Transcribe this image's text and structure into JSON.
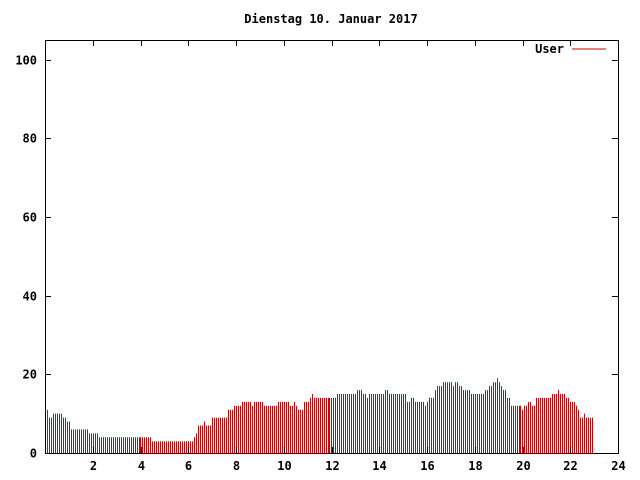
{
  "chart_data": {
    "type": "bar",
    "title": "Dienstag 10. Januar 2017",
    "xlabel": "",
    "ylabel": "",
    "xlim": [
      0,
      24
    ],
    "ylim": [
      0,
      105
    ],
    "x_ticks": [
      2,
      4,
      6,
      8,
      10,
      12,
      14,
      16,
      18,
      20,
      22,
      24
    ],
    "y_ticks": [
      0,
      20,
      40,
      60,
      80,
      100
    ],
    "grid": false,
    "legend": {
      "position": "top-right",
      "entries": [
        "User"
      ]
    },
    "colors": {
      "series": "#cc0000",
      "axis": "#000000",
      "background": "#ffffff"
    },
    "series": [
      {
        "name": "User",
        "x_start": 0,
        "x_step": 0.08333,
        "values": [
          11,
          11,
          9,
          9,
          10,
          10,
          10,
          10,
          10,
          9,
          9,
          8,
          8,
          6,
          6,
          6,
          6,
          6,
          6,
          6,
          6,
          6,
          5,
          5,
          5,
          5,
          5,
          4,
          4,
          4,
          4,
          4,
          4,
          4,
          4,
          4,
          4,
          4,
          4,
          4,
          4,
          4,
          4,
          4,
          4,
          4,
          4,
          4,
          4,
          4,
          4,
          4,
          4,
          4,
          3,
          3,
          3,
          3,
          3,
          3,
          3,
          3,
          3,
          3,
          3,
          3,
          3,
          3,
          3,
          3,
          3,
          3,
          3,
          3,
          3,
          4,
          5,
          7,
          7,
          7,
          8,
          7,
          7,
          7,
          9,
          9,
          9,
          9,
          9,
          9,
          9,
          9,
          11,
          11,
          11,
          12,
          12,
          12,
          12,
          13,
          13,
          13,
          13,
          13,
          12,
          13,
          13,
          13,
          13,
          13,
          12,
          12,
          12,
          12,
          12,
          12,
          12,
          13,
          13,
          13,
          13,
          13,
          13,
          12,
          12,
          13,
          12,
          11,
          11,
          11,
          13,
          13,
          13,
          14,
          15,
          14,
          14,
          14,
          14,
          14,
          14,
          14,
          14,
          14,
          14,
          14,
          14,
          15,
          15,
          15,
          15,
          15,
          15,
          15,
          15,
          15,
          15,
          16,
          16,
          16,
          15,
          15,
          14,
          15,
          15,
          15,
          15,
          15,
          15,
          15,
          15,
          16,
          16,
          15,
          15,
          15,
          15,
          15,
          15,
          15,
          15,
          15,
          13,
          13,
          14,
          14,
          13,
          13,
          13,
          13,
          13,
          12,
          13,
          14,
          14,
          14,
          16,
          17,
          17,
          17,
          18,
          18,
          18,
          18,
          18,
          17,
          18,
          18,
          17,
          17,
          16,
          16,
          16,
          16,
          15,
          15,
          15,
          15,
          15,
          15,
          15,
          16,
          16,
          17,
          17,
          18,
          18,
          19,
          18,
          17,
          16,
          16,
          14,
          14,
          12,
          12,
          12,
          12,
          12,
          12,
          11,
          12,
          12,
          13,
          13,
          12,
          12,
          14,
          14,
          14,
          14,
          14,
          14,
          14,
          14,
          15,
          15,
          15,
          16,
          15,
          15,
          15,
          14,
          14,
          13,
          13,
          13,
          12,
          11,
          9,
          9,
          10,
          9,
          9,
          9,
          9
        ]
      }
    ]
  }
}
